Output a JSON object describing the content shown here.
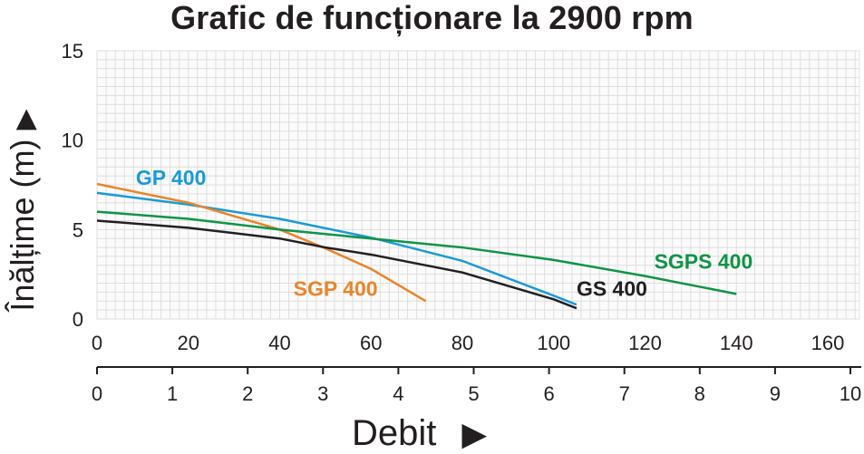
{
  "chart_data": {
    "type": "line",
    "title": "Grafic de funcționare la 2900 rpm",
    "xlabel": "Debit",
    "ylabel": "Înălțime (m)",
    "xlim": [
      0,
      167
    ],
    "ylim": [
      0,
      15
    ],
    "x_ticks": [
      "0",
      "20",
      "40",
      "60",
      "80",
      "100",
      "120",
      "140",
      "160"
    ],
    "y_ticks": [
      "0",
      "5",
      "10",
      "15"
    ],
    "secondary_x_ticks": [
      "0",
      "1",
      "2",
      "3",
      "4",
      "5",
      "6",
      "7",
      "8",
      "9",
      "10"
    ],
    "secondary_xlim": [
      0,
      10
    ],
    "grid": true,
    "series": [
      {
        "name": "GP 400",
        "color": "#1a9ad6",
        "x": [
          0,
          20,
          40,
          60,
          80,
          100,
          105
        ],
        "y": [
          7.05,
          6.4,
          5.6,
          4.55,
          3.25,
          1.3,
          0.8
        ]
      },
      {
        "name": "SGP 400",
        "color": "#e8852a",
        "x": [
          0,
          20,
          40,
          50,
          60,
          72
        ],
        "y": [
          7.55,
          6.5,
          5.0,
          3.95,
          2.8,
          1.0
        ]
      },
      {
        "name": "SGPS 400",
        "color": "#0f9447",
        "x": [
          0,
          20,
          40,
          60,
          80,
          100,
          120,
          140
        ],
        "y": [
          6.0,
          5.6,
          5.0,
          4.5,
          4.0,
          3.3,
          2.4,
          1.4
        ]
      },
      {
        "name": "GS 400",
        "color": "#231f20",
        "x": [
          0,
          20,
          40,
          50,
          60,
          80,
          100,
          105
        ],
        "y": [
          5.5,
          5.1,
          4.5,
          4.0,
          3.6,
          2.6,
          1.1,
          0.6
        ]
      }
    ],
    "series_labels": [
      {
        "text": "GP 400",
        "x": 8.5,
        "y": 7.5
      },
      {
        "text": "SGP 400",
        "x": 43,
        "y": 1.3
      },
      {
        "text": "SGPS 400",
        "x": 122,
        "y": 2.8
      },
      {
        "text": "GS 400",
        "x": 105,
        "y": 1.3
      }
    ]
  }
}
